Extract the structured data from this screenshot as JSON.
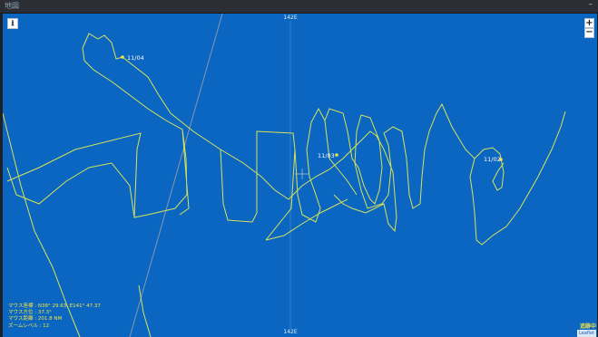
{
  "window": {
    "title": "地図",
    "minimize_symbol": "–"
  },
  "map": {
    "background_color": "#0a66c0",
    "track_color": "#d7e35a",
    "graticule_label_top": "142E",
    "graticule_label_bottom": "142E",
    "download_icon": "⭳",
    "zoom_in_label": "+",
    "zoom_out_label": "−",
    "date_markers": [
      {
        "label": "11/04"
      },
      {
        "label": "11/03"
      },
      {
        "label": "11/02"
      }
    ],
    "status": {
      "mouse_coord": "マウス座標 : N38° 29.63, E141° 47.37",
      "mouse_bearing": "マウス方位 : 37.3°",
      "mouse_distance": "マウス距離 : 201.8 NM",
      "zoom_level": "ズームレベル : 12"
    },
    "tracking_label": "追跡中",
    "attribution": "Leaflet"
  }
}
